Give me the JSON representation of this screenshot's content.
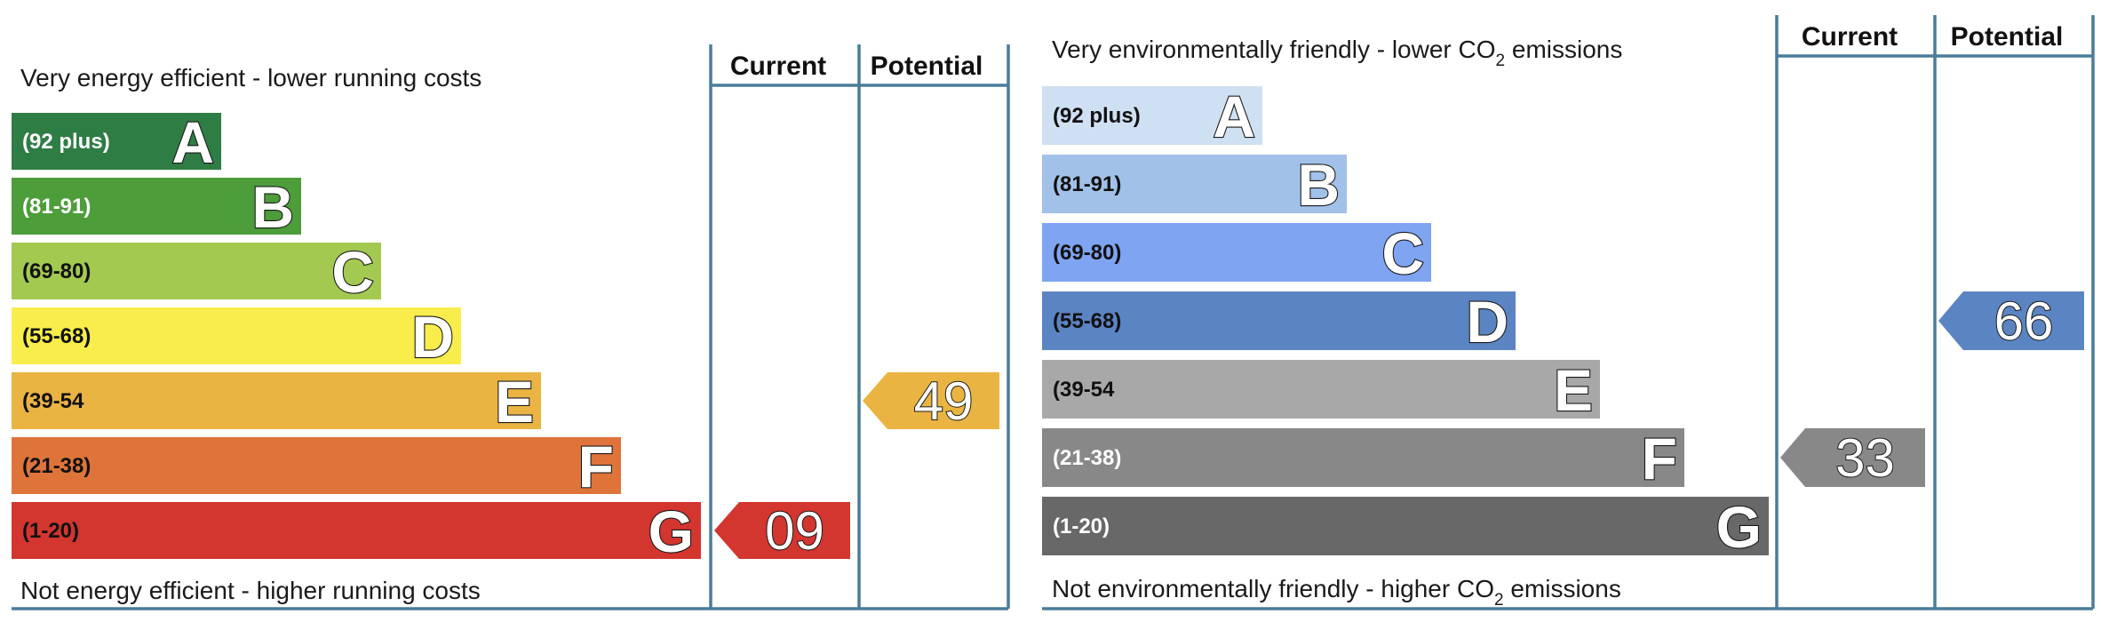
{
  "chart_data": [
    {
      "type": "bar",
      "top_label": "Very energy efficient - lower running costs",
      "bottom_label": "Not energy efficient - higher running costs",
      "current_header": "Current",
      "potential_header": "Potential",
      "bands": [
        {
          "letter": "A",
          "range": "(92 plus)",
          "color": "#2e7d45",
          "text_color": "#ffffff"
        },
        {
          "letter": "B",
          "range": "(81-91)",
          "color": "#4d9d3b",
          "text_color": "#ffffff"
        },
        {
          "letter": "C",
          "range": "(69-80)",
          "color": "#a3c950",
          "text_color": "#111111"
        },
        {
          "letter": "D",
          "range": "(55-68)",
          "color": "#f8ed4a",
          "text_color": "#111111"
        },
        {
          "letter": "E",
          "range": "(39-54",
          "color": "#eab443",
          "text_color": "#111111"
        },
        {
          "letter": "F",
          "range": "(21-38)",
          "color": "#df743a",
          "text_color": "#111111"
        },
        {
          "letter": "G",
          "range": "(1-20)",
          "color": "#d3352f",
          "text_color": "#111111"
        }
      ],
      "current": {
        "value": "09",
        "band": "G",
        "color": "#d3352f"
      },
      "potential": {
        "value": "49",
        "band": "E",
        "color": "#eab443"
      }
    },
    {
      "type": "bar",
      "top_label_prefix": "Very environmentally friendly - lower CO",
      "top_label_sub": "2",
      "top_label_suffix": " emissions",
      "bottom_label_prefix": "Not environmentally friendly - higher CO",
      "bottom_label_sub": "2",
      "bottom_label_suffix": " emissions",
      "current_header": "Current",
      "potential_header": "Potential",
      "bands": [
        {
          "letter": "A",
          "range": "(92 plus)",
          "color": "#cfe0f3",
          "text_color": "#111111"
        },
        {
          "letter": "B",
          "range": "(81-91)",
          "color": "#a1c1e9",
          "text_color": "#111111"
        },
        {
          "letter": "C",
          "range": "(69-80)",
          "color": "#7ea4f2",
          "text_color": "#111111"
        },
        {
          "letter": "D",
          "range": "(55-68)",
          "color": "#5b84c3",
          "text_color": "#111111"
        },
        {
          "letter": "E",
          "range": "(39-54",
          "color": "#a8a8a8",
          "text_color": "#111111"
        },
        {
          "letter": "F",
          "range": "(21-38)",
          "color": "#888888",
          "text_color": "#ffffff"
        },
        {
          "letter": "G",
          "range": "(1-20)",
          "color": "#686868",
          "text_color": "#ffffff"
        }
      ],
      "current": {
        "value": "33",
        "band": "F",
        "color": "#888888"
      },
      "potential": {
        "value": "66",
        "band": "D",
        "color": "#5b84c3"
      }
    }
  ],
  "frame_color": "#4a7d99"
}
